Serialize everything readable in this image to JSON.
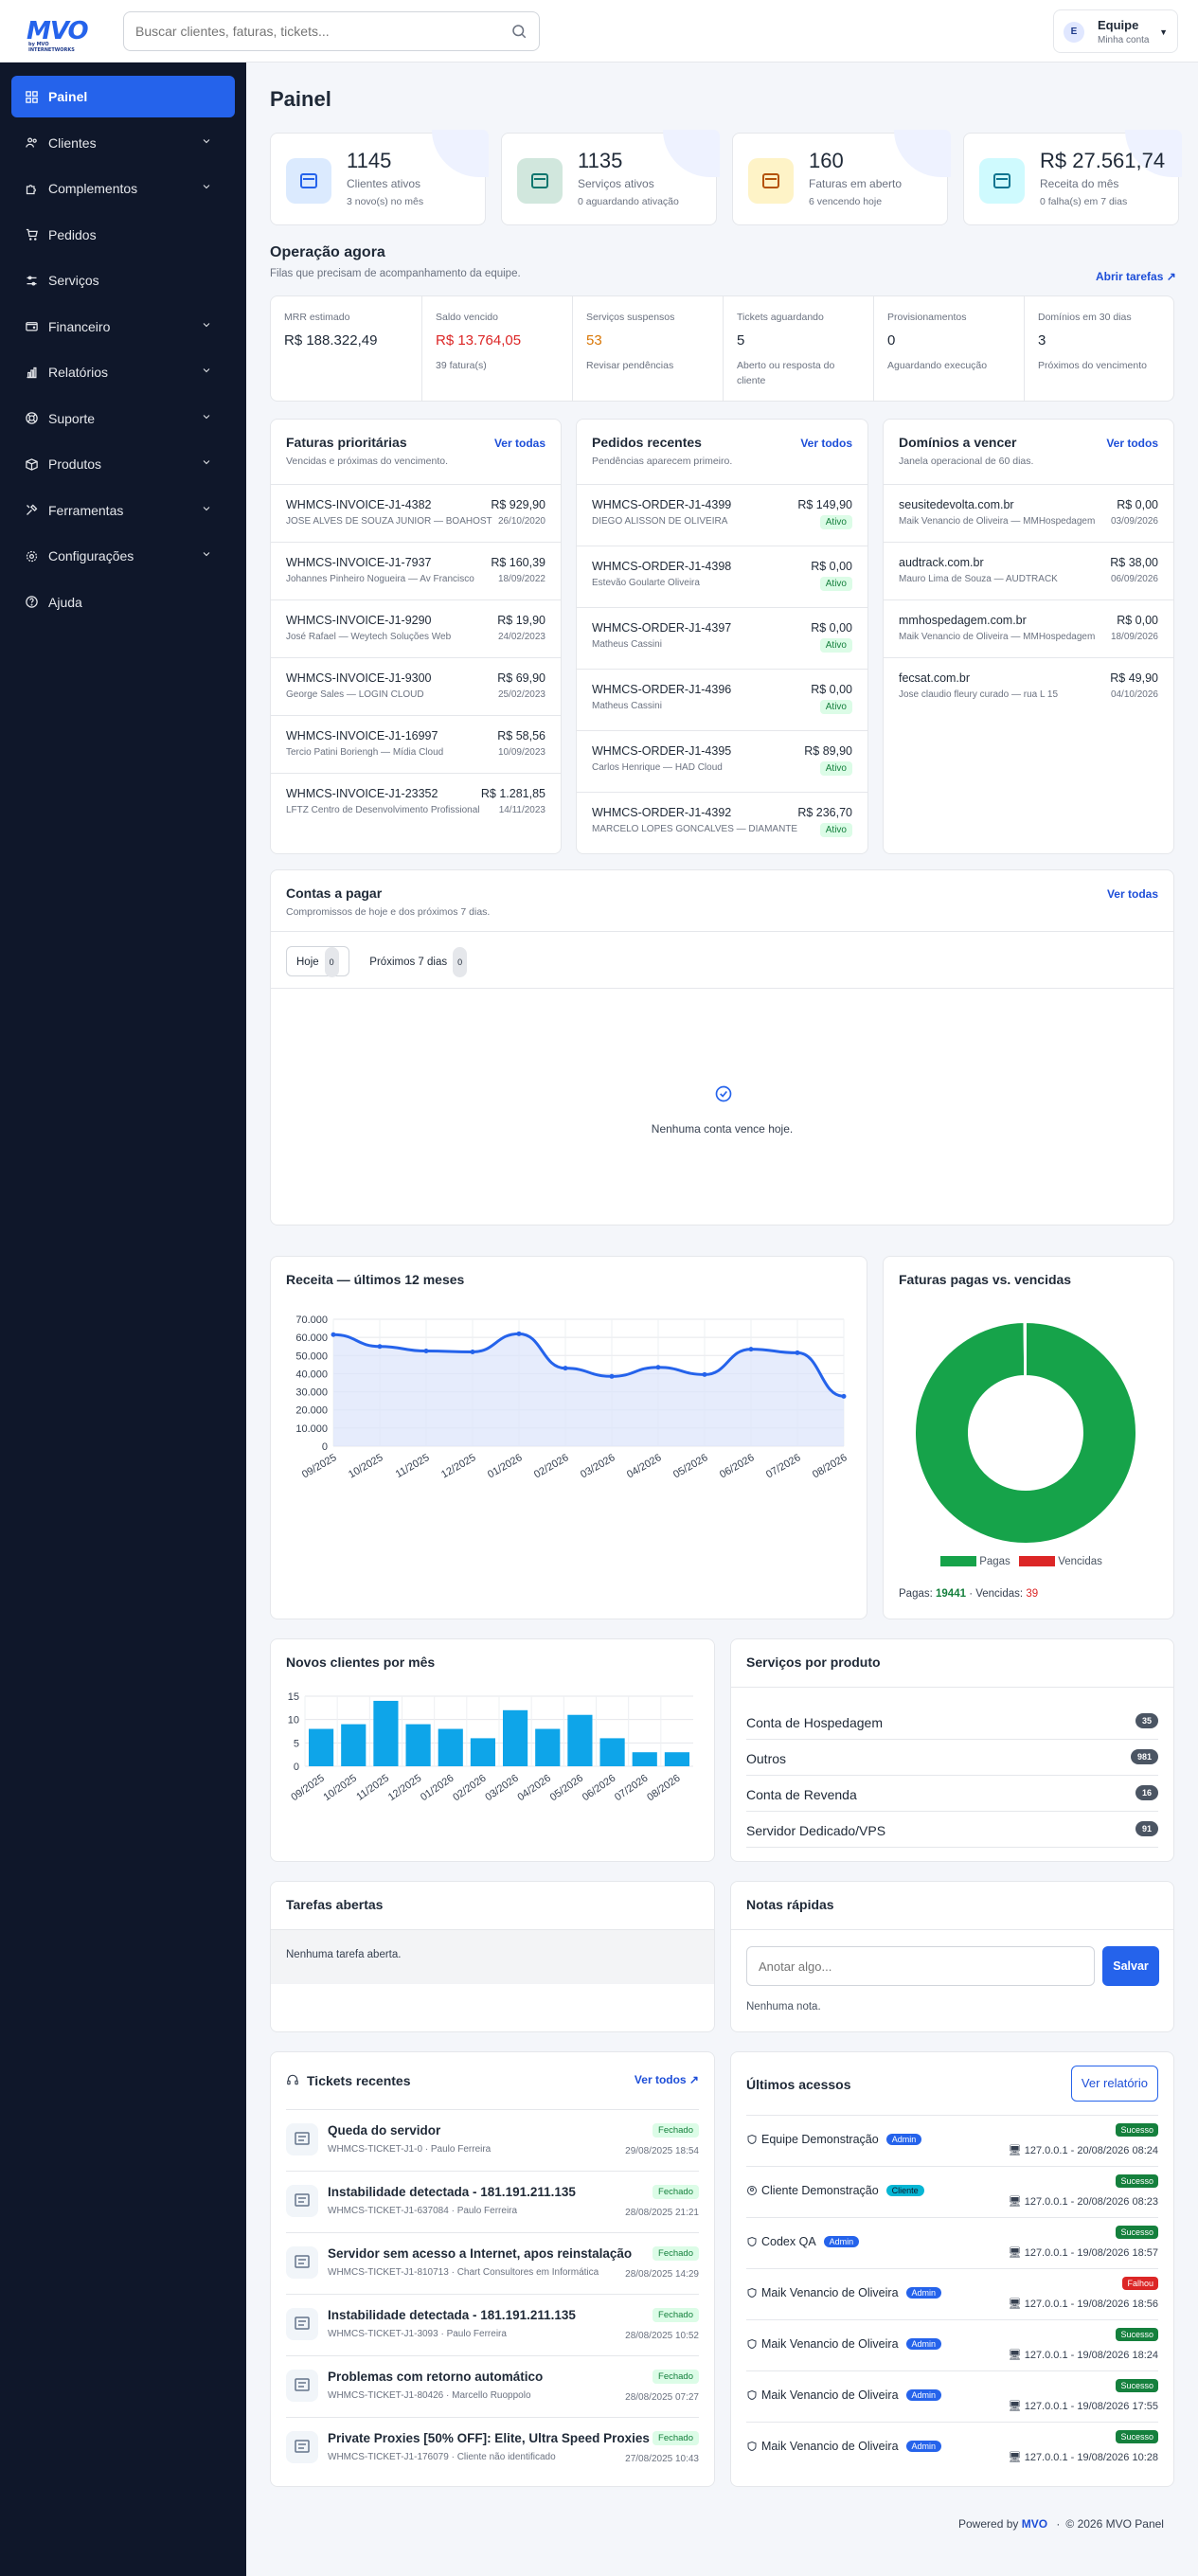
{
  "app": {
    "logo": "MVO",
    "logo_sub": "by MVO INTERNETWORKS"
  },
  "search": {
    "placeholder": "Buscar clientes, faturas, tickets..."
  },
  "user": {
    "initial": "E",
    "name": "Equipe",
    "role": "Minha conta"
  },
  "sidebar": {
    "items": [
      {
        "label": "Painel",
        "icon": "grid-icon",
        "active": true
      },
      {
        "label": "Clientes",
        "icon": "users-icon",
        "chevron": true
      },
      {
        "label": "Complementos",
        "icon": "puzzle-icon",
        "chevron": true
      },
      {
        "label": "Pedidos",
        "icon": "cart-icon"
      },
      {
        "label": "Serviços",
        "icon": "sliders-icon"
      },
      {
        "label": "Financeiro",
        "icon": "wallet-icon",
        "chevron": true
      },
      {
        "label": "Relatórios",
        "icon": "chart-icon",
        "chevron": true
      },
      {
        "label": "Suporte",
        "icon": "lifebuoy-icon",
        "chevron": true
      },
      {
        "label": "Produtos",
        "icon": "box-icon",
        "chevron": true
      },
      {
        "label": "Ferramentas",
        "icon": "tools-icon",
        "chevron": true
      },
      {
        "label": "Configurações",
        "icon": "gear-icon",
        "chevron": true
      },
      {
        "label": "Ajuda",
        "icon": "help-icon"
      }
    ]
  },
  "page": {
    "title": "Painel"
  },
  "stats": [
    {
      "value": "1145",
      "label": "Clientes ativos",
      "sub": "3 novo(s) no mês",
      "color": "#dbeafe",
      "icon": "users-icon"
    },
    {
      "value": "1135",
      "label": "Serviços ativos",
      "sub": "0 aguardando ativação",
      "color": "#d1e7dd",
      "icon": "server-icon"
    },
    {
      "value": "160",
      "label": "Faturas em aberto",
      "sub": "6 vencendo hoje",
      "color": "#fef3c7",
      "icon": "invoice-icon"
    },
    {
      "value": "R$ 27.561,74",
      "label": "Receita do mês",
      "sub": "0 falha(s) em 7 dias",
      "color": "#cffafe",
      "icon": "cash-icon"
    }
  ],
  "operation": {
    "title": "Operação agora",
    "subtitle": "Filas que precisam de acompanhamento da equipe.",
    "link": "Abrir tarefas ↗",
    "items": [
      {
        "title": "MRR estimado",
        "value": "R$ 188.322,49",
        "sub": ""
      },
      {
        "title": "Saldo vencido",
        "value": "R$ 13.764,05",
        "sub": "39 fatura(s)",
        "color": "#dc2626"
      },
      {
        "title": "Serviços suspensos",
        "value": "53",
        "sub": "Revisar pendências",
        "color": "#d97706"
      },
      {
        "title": "Tickets aguardando",
        "value": "5",
        "sub": "Aberto ou resposta do cliente"
      },
      {
        "title": "Provisionamentos",
        "value": "0",
        "sub": "Aguardando execução"
      },
      {
        "title": "Domínios em 30 dias",
        "value": "3",
        "sub": "Próximos do vencimento"
      }
    ]
  },
  "invoices": {
    "title": "Faturas prioritárias",
    "subtitle": "Vencidas e próximas do vencimento.",
    "link": "Ver todas",
    "rows": [
      {
        "id": "WHMCS-INVOICE-J1-4382",
        "client": "JOSE ALVES DE SOUZA JUNIOR — BOAHOST",
        "amount": "R$ 929,90",
        "date": "26/10/2020"
      },
      {
        "id": "WHMCS-INVOICE-J1-7937",
        "client": "Johannes Pinheiro Nogueira — Av Francisco",
        "amount": "R$ 160,39",
        "date": "18/09/2022"
      },
      {
        "id": "WHMCS-INVOICE-J1-9290",
        "client": "José Rafael — Weytech Soluções Web",
        "amount": "R$ 19,90",
        "date": "24/02/2023"
      },
      {
        "id": "WHMCS-INVOICE-J1-9300",
        "client": "George Sales — LOGIN CLOUD",
        "amount": "R$ 69,90",
        "date": "25/02/2023"
      },
      {
        "id": "WHMCS-INVOICE-J1-16997",
        "client": "Tercio Patini Boriengh — Mídia Cloud",
        "amount": "R$ 58,56",
        "date": "10/09/2023"
      },
      {
        "id": "WHMCS-INVOICE-J1-23352",
        "client": "LFTZ Centro de Desenvolvimento Profissional",
        "amount": "R$ 1.281,85",
        "date": "14/11/2023"
      }
    ]
  },
  "orders": {
    "title": "Pedidos recentes",
    "subtitle": "Pendências aparecem primeiro.",
    "link": "Ver todos",
    "rows": [
      {
        "id": "WHMCS-ORDER-J1-4399",
        "client": "DIEGO ALISSON DE OLIVEIRA",
        "amount": "R$ 149,90",
        "status": "Ativo"
      },
      {
        "id": "WHMCS-ORDER-J1-4398",
        "client": "Estevão Goularte Oliveira",
        "amount": "R$ 0,00",
        "status": "Ativo"
      },
      {
        "id": "WHMCS-ORDER-J1-4397",
        "client": "Matheus Cassini",
        "amount": "R$ 0,00",
        "status": "Ativo"
      },
      {
        "id": "WHMCS-ORDER-J1-4396",
        "client": "Matheus Cassini",
        "amount": "R$ 0,00",
        "status": "Ativo"
      },
      {
        "id": "WHMCS-ORDER-J1-4395",
        "client": "Carlos Henrique — HAD Cloud",
        "amount": "R$ 89,90",
        "status": "Ativo"
      },
      {
        "id": "WHMCS-ORDER-J1-4392",
        "client": "MARCELO LOPES GONCALVES — DIAMANTE",
        "amount": "R$ 236,70",
        "status": "Ativo"
      }
    ]
  },
  "domains": {
    "title": "Domínios a vencer",
    "subtitle": "Janela operacional de 60 dias.",
    "link": "Ver todos",
    "rows": [
      {
        "id": "seusitedevolta.com.br",
        "client": "Maik Venancio de Oliveira — MMHospedagem",
        "amount": "R$ 0,00",
        "date": "03/09/2026"
      },
      {
        "id": "audtrack.com.br",
        "client": "Mauro Lima de Souza — AUDTRACK",
        "amount": "R$ 38,00",
        "date": "06/09/2026"
      },
      {
        "id": "mmhospedagem.com.br",
        "client": "Maik Venancio de Oliveira — MMHospedagem",
        "amount": "R$ 0,00",
        "date": "18/09/2026"
      },
      {
        "id": "fecsat.com.br",
        "client": "Jose claudio fleury curado — rua L 15",
        "amount": "R$ 49,90",
        "date": "04/10/2026"
      }
    ]
  },
  "payables": {
    "title": "Contas a pagar",
    "subtitle": "Compromissos de hoje e dos próximos 7 dias.",
    "link": "Ver todas",
    "tabs": [
      {
        "label": "Hoje",
        "count": "0"
      },
      {
        "label": "Próximos 7 dias",
        "count": "0"
      }
    ],
    "empty": "Nenhuma conta vence hoje."
  },
  "revenue": {
    "title": "Receita — últimos 12 meses"
  },
  "paid_chart": {
    "title": "Faturas pagas vs. vencidas",
    "legend_paid": "Pagas",
    "legend_overdue": "Vencidas",
    "summary_paid_label": "Pagas:",
    "summary_paid": "19441",
    "summary_overdue_label": "· Vencidas:",
    "summary_overdue": "39"
  },
  "new_clients": {
    "title": "Novos clientes por mês"
  },
  "services": {
    "title": "Serviços por produto",
    "rows": [
      {
        "name": "Conta de Hospedagem",
        "count": "35"
      },
      {
        "name": "Outros",
        "count": "981"
      },
      {
        "name": "Conta de Revenda",
        "count": "16"
      },
      {
        "name": "Servidor Dedicado/VPS",
        "count": "91"
      }
    ]
  },
  "tasks": {
    "title": "Tarefas abertas",
    "empty": "Nenhuma tarefa aberta."
  },
  "notes": {
    "title": "Notas rápidas",
    "placeholder": "Anotar algo...",
    "save": "Salvar",
    "empty": "Nenhuma nota."
  },
  "tickets": {
    "title": "Tickets recentes",
    "link": "Ver todos ↗",
    "rows": [
      {
        "subject": "Queda do servidor",
        "meta": "WHMCS-TICKET-J1-0 · Paulo Ferreira",
        "status": "Fechado",
        "date": "29/08/2025 18:54"
      },
      {
        "subject": "Instabilidade detectada - 181.191.211.135",
        "meta": "WHMCS-TICKET-J1-637084 · Paulo Ferreira",
        "status": "Fechado",
        "date": "28/08/2025 21:21"
      },
      {
        "subject": "Servidor sem acesso a Internet, apos reinstalação",
        "meta": "WHMCS-TICKET-J1-810713 · Chart Consultores em Informática",
        "status": "Fechado",
        "date": "28/08/2025 14:29"
      },
      {
        "subject": "Instabilidade detectada - 181.191.211.135",
        "meta": "WHMCS-TICKET-J1-3093 · Paulo Ferreira",
        "status": "Fechado",
        "date": "28/08/2025 10:52"
      },
      {
        "subject": "Problemas com retorno automático",
        "meta": "WHMCS-TICKET-J1-80426 · Marcello Ruoppolo",
        "status": "Fechado",
        "date": "28/08/2025 07:27"
      },
      {
        "subject": "Private Proxies [50% OFF]: Elite, Ultra Speed Proxies",
        "meta": "WHMCS-TICKET-J1-176079 · Cliente não identificado",
        "status": "Fechado",
        "date": "27/08/2025 10:43"
      }
    ]
  },
  "access": {
    "title": "Últimos acessos",
    "button": "Ver relatório",
    "rows": [
      {
        "name": "Equipe Demonstração",
        "role": "Admin",
        "status": "Sucesso",
        "ip": "127.0.0.1 - 20/08/2026 08:24"
      },
      {
        "name": "Cliente Demonstração",
        "role": "Cliente",
        "status": "Sucesso",
        "ip": "127.0.0.1 - 20/08/2026 08:23"
      },
      {
        "name": "Codex QA",
        "role": "Admin",
        "status": "Sucesso",
        "ip": "127.0.0.1 - 19/08/2026 18:57"
      },
      {
        "name": "Maik Venancio de Oliveira",
        "role": "Admin",
        "status": "Falhou",
        "ip": "127.0.0.1 - 19/08/2026 18:56"
      },
      {
        "name": "Maik Venancio de Oliveira",
        "role": "Admin",
        "status": "Sucesso",
        "ip": "127.0.0.1 - 19/08/2026 18:24"
      },
      {
        "name": "Maik Venancio de Oliveira",
        "role": "Admin",
        "status": "Sucesso",
        "ip": "127.0.0.1 - 19/08/2026 17:55"
      },
      {
        "name": "Maik Venancio de Oliveira",
        "role": "Admin",
        "status": "Sucesso",
        "ip": "127.0.0.1 - 19/08/2026 10:28"
      }
    ]
  },
  "footer": {
    "powered": "Powered by",
    "brand": "MVO",
    "copy": "© 2026 MVO Panel"
  },
  "chart_data": [
    {
      "type": "area",
      "title": "Receita — últimos 12 meses",
      "categories": [
        "09/2025",
        "10/2025",
        "11/2025",
        "12/2025",
        "01/2026",
        "02/2026",
        "03/2026",
        "04/2026",
        "05/2026",
        "06/2026",
        "07/2026",
        "08/2026"
      ],
      "values": [
        61500,
        55000,
        52500,
        52000,
        62000,
        43000,
        38500,
        43500,
        39500,
        53500,
        51500,
        27500
      ],
      "ylim": [
        0,
        70000
      ],
      "yticks": [
        "0",
        "10.000",
        "20.000",
        "30.000",
        "40.000",
        "50.000",
        "60.000",
        "70.000"
      ],
      "color": "#2563eb"
    },
    {
      "type": "pie",
      "title": "Faturas pagas vs. vencidas",
      "categories": [
        "Pagas",
        "Vencidas"
      ],
      "values": [
        19441,
        39
      ],
      "colors": [
        "#16a34a",
        "#dc2626"
      ]
    },
    {
      "type": "bar",
      "title": "Novos clientes por mês",
      "categories": [
        "09/2025",
        "10/2025",
        "11/2025",
        "12/2025",
        "01/2026",
        "02/2026",
        "03/2026",
        "04/2026",
        "05/2026",
        "06/2026",
        "07/2026",
        "08/2026"
      ],
      "values": [
        8,
        9,
        14,
        9,
        8,
        6,
        12,
        8,
        11,
        6,
        3,
        3
      ],
      "ylim": [
        0,
        15
      ],
      "yticks": [
        "0",
        "5",
        "10",
        "15"
      ],
      "color": "#0ea5e9"
    }
  ]
}
